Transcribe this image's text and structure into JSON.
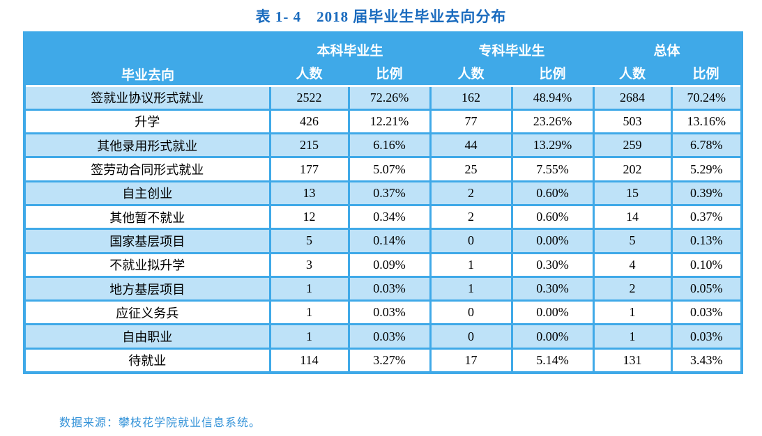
{
  "title": "表 1- 4　2018 届毕业生毕业去向分布",
  "table": {
    "header": {
      "destination_label": "毕业去向",
      "groups": [
        "本科毕业生",
        "专科毕业生",
        "总体"
      ],
      "sub_labels": [
        "人数",
        "比例",
        "人数",
        "比例",
        "人数",
        "比例"
      ]
    },
    "rows": [
      {
        "destination": "签就业协议形式就业",
        "cells": [
          "2522",
          "72.26%",
          "162",
          "48.94%",
          "2684",
          "70.24%"
        ]
      },
      {
        "destination": "升学",
        "cells": [
          "426",
          "12.21%",
          "77",
          "23.26%",
          "503",
          "13.16%"
        ]
      },
      {
        "destination": "其他录用形式就业",
        "cells": [
          "215",
          "6.16%",
          "44",
          "13.29%",
          "259",
          "6.78%"
        ]
      },
      {
        "destination": "签劳动合同形式就业",
        "cells": [
          "177",
          "5.07%",
          "25",
          "7.55%",
          "202",
          "5.29%"
        ]
      },
      {
        "destination": "自主创业",
        "cells": [
          "13",
          "0.37%",
          "2",
          "0.60%",
          "15",
          "0.39%"
        ]
      },
      {
        "destination": "其他暂不就业",
        "cells": [
          "12",
          "0.34%",
          "2",
          "0.60%",
          "14",
          "0.37%"
        ]
      },
      {
        "destination": "国家基层项目",
        "cells": [
          "5",
          "0.14%",
          "0",
          "0.00%",
          "5",
          "0.13%"
        ]
      },
      {
        "destination": "不就业拟升学",
        "cells": [
          "3",
          "0.09%",
          "1",
          "0.30%",
          "4",
          "0.10%"
        ]
      },
      {
        "destination": "地方基层项目",
        "cells": [
          "1",
          "0.03%",
          "1",
          "0.30%",
          "2",
          "0.05%"
        ]
      },
      {
        "destination": "应征义务兵",
        "cells": [
          "1",
          "0.03%",
          "0",
          "0.00%",
          "1",
          "0.03%"
        ]
      },
      {
        "destination": "自由职业",
        "cells": [
          "1",
          "0.03%",
          "0",
          "0.00%",
          "1",
          "0.03%"
        ]
      },
      {
        "destination": "待就业",
        "cells": [
          "114",
          "3.27%",
          "17",
          "5.14%",
          "131",
          "3.43%"
        ]
      }
    ]
  },
  "footer": {
    "source_note": "数据来源：攀枝花学院就业信息系统。"
  },
  "colors": {
    "header_background": "#3fa9e8",
    "alt_row_background": "#bee2f8",
    "grid_line": "#3fa9e8",
    "title_text": "#1a6bbe",
    "source_note_text": "#3392d8"
  }
}
